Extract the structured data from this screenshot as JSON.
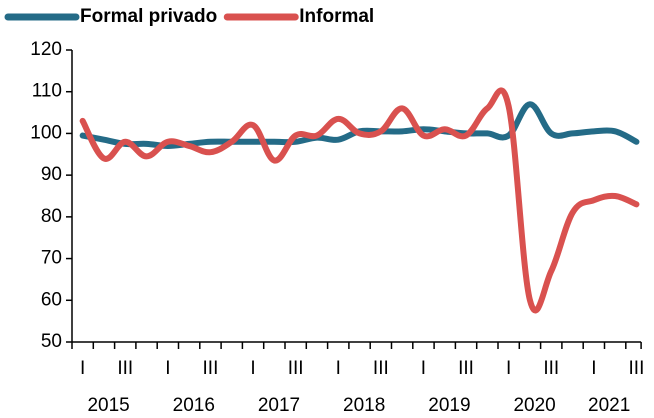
{
  "chart_data": {
    "type": "line",
    "categories": [
      "I",
      null,
      "III",
      null,
      "I",
      null,
      "III",
      null,
      "I",
      null,
      "III",
      null,
      "I",
      null,
      "III",
      null,
      "I",
      null,
      "III",
      null,
      "I",
      null,
      "III",
      null,
      "I",
      null,
      "III"
    ],
    "years": [
      "2015",
      "2016",
      "2017",
      "2018",
      "2019",
      "2020",
      "2021"
    ],
    "series": [
      {
        "name": "Formal privado",
        "color": "#246b87",
        "values": [
          99.5,
          98.5,
          97.5,
          97.5,
          97,
          97.5,
          98,
          98,
          98,
          98,
          98,
          99,
          98.5,
          100.5,
          100.5,
          100.5,
          101,
          100.5,
          100,
          100,
          99.5,
          107,
          100,
          100,
          100.5,
          100.5,
          98
        ]
      },
      {
        "name": "Informal",
        "color": "#d9514f",
        "values": [
          103,
          94,
          98,
          94.5,
          98,
          97,
          95.5,
          98,
          102,
          93.5,
          99.5,
          99.5,
          103.5,
          100,
          100.5,
          106,
          99.5,
          101,
          99.5,
          106,
          106.5,
          60,
          67,
          81,
          84,
          85,
          83
        ]
      }
    ],
    "ylim": [
      50,
      120
    ],
    "yticks": [
      50,
      60,
      70,
      80,
      90,
      100,
      110,
      120
    ],
    "legend": "top"
  }
}
